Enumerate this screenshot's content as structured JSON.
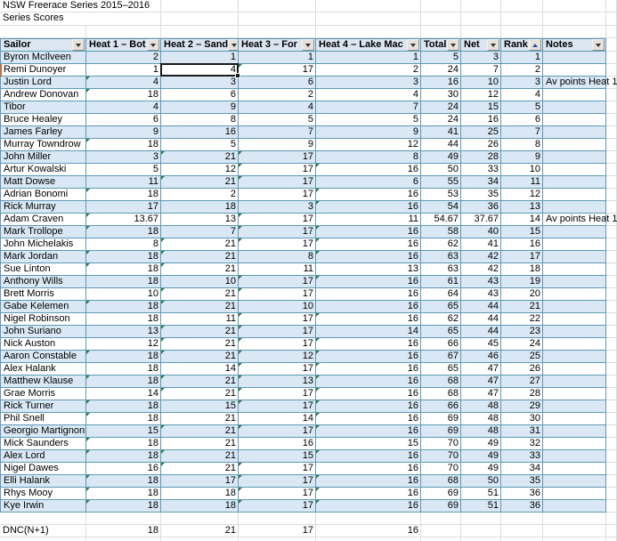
{
  "title": "NSW Freerace Series 2015–2016",
  "subtitle": "Series Scores",
  "colors": {
    "band": "#d9e8f4",
    "grid_table": "#5e9ab7",
    "grid_plain": "#dcdcdc",
    "marker_green": "#2e7d46",
    "selection_border": "#1a1a1a",
    "sort_arrow_blue": "#2a52a0",
    "row_indicator_orange": "#c0713c",
    "header_fill": "#dbe6f1"
  },
  "selection": {
    "row_index": 1,
    "column_key": "h2",
    "value": "4"
  },
  "table": {
    "columns": [
      {
        "key": "name",
        "label": "Sailor",
        "numeric": false,
        "filter_icon": "dropdown"
      },
      {
        "key": "h1",
        "label": "Heat 1 – Bot",
        "numeric": true,
        "filter_icon": "dropdown"
      },
      {
        "key": "h2",
        "label": "Heat 2 – Sand",
        "numeric": true,
        "filter_icon": "dropdown"
      },
      {
        "key": "h3",
        "label": "Heat 3 – For",
        "numeric": true,
        "filter_icon": "dropdown"
      },
      {
        "key": "h4",
        "label": "Heat 4 – Lake Mac",
        "numeric": true,
        "filter_icon": "dropdown"
      },
      {
        "key": "total",
        "label": "Total",
        "numeric": true,
        "filter_icon": "dropdown"
      },
      {
        "key": "net",
        "label": "Net",
        "numeric": true,
        "filter_icon": "dropdown"
      },
      {
        "key": "rank",
        "label": "Rank",
        "numeric": true,
        "filter_icon": "sorted-up"
      },
      {
        "key": "notes",
        "label": "Notes",
        "numeric": false,
        "filter_icon": "dropdown"
      }
    ],
    "rows": [
      {
        "name": "Byron McIlveen",
        "h1": "2",
        "h2": "1",
        "h3": "1",
        "h4": "1",
        "total": "5",
        "net": "3",
        "rank": "1",
        "notes": "",
        "marks": []
      },
      {
        "name": "Remi Dunoyer",
        "h1": "1",
        "h2": "4",
        "h3": "17",
        "h4": "2",
        "total": "24",
        "net": "7",
        "rank": "2",
        "notes": "",
        "marks": [
          "h3"
        ]
      },
      {
        "name": "Justin Lord",
        "h1": "4",
        "h2": "3",
        "h3": "6",
        "h4": "3",
        "total": "16",
        "net": "10",
        "rank": "3",
        "notes": "Av points Heat 1",
        "marks": [
          "h1"
        ]
      },
      {
        "name": "Andrew Donovan",
        "h1": "18",
        "h2": "6",
        "h3": "2",
        "h4": "4",
        "total": "30",
        "net": "12",
        "rank": "4",
        "notes": "",
        "marks": [
          "h1"
        ]
      },
      {
        "name": "Tibor",
        "h1": "4",
        "h2": "9",
        "h3": "4",
        "h4": "7",
        "total": "24",
        "net": "15",
        "rank": "5",
        "notes": "",
        "marks": []
      },
      {
        "name": "Bruce Healey",
        "h1": "6",
        "h2": "8",
        "h3": "5",
        "h4": "5",
        "total": "24",
        "net": "16",
        "rank": "6",
        "notes": "",
        "marks": []
      },
      {
        "name": "James Farley",
        "h1": "9",
        "h2": "16",
        "h3": "7",
        "h4": "9",
        "total": "41",
        "net": "25",
        "rank": "7",
        "notes": "",
        "marks": []
      },
      {
        "name": "Murray Towndrow",
        "h1": "18",
        "h2": "5",
        "h3": "9",
        "h4": "12",
        "total": "44",
        "net": "26",
        "rank": "8",
        "notes": "",
        "marks": [
          "h1"
        ]
      },
      {
        "name": "John Miller",
        "h1": "3",
        "h2": "21",
        "h3": "17",
        "h4": "8",
        "total": "49",
        "net": "28",
        "rank": "9",
        "notes": "",
        "marks": [
          "h2",
          "h3"
        ]
      },
      {
        "name": "Artur Kowalski",
        "h1": "5",
        "h2": "12",
        "h3": "17",
        "h4": "16",
        "total": "50",
        "net": "33",
        "rank": "10",
        "notes": "",
        "marks": [
          "h3",
          "h4"
        ]
      },
      {
        "name": "Matt Dowse",
        "h1": "11",
        "h2": "21",
        "h3": "17",
        "h4": "6",
        "total": "55",
        "net": "34",
        "rank": "11",
        "notes": "",
        "marks": [
          "h2",
          "h3"
        ]
      },
      {
        "name": "Adrian Bonomi",
        "h1": "18",
        "h2": "2",
        "h3": "17",
        "h4": "16",
        "total": "53",
        "net": "35",
        "rank": "12",
        "notes": "",
        "marks": [
          "h1",
          "h4"
        ]
      },
      {
        "name": "Rick Murray",
        "h1": "17",
        "h2": "18",
        "h3": "3",
        "h4": "16",
        "total": "54",
        "net": "36",
        "rank": "13",
        "notes": "",
        "marks": [
          "h4"
        ]
      },
      {
        "name": "Adam Craven",
        "h1": "13.67",
        "h2": "13",
        "h3": "17",
        "h4": "11",
        "total": "54.67",
        "net": "37.67",
        "rank": "14",
        "notes": "Av points Heat 1",
        "marks": [
          "h1",
          "h3"
        ]
      },
      {
        "name": "Mark Trollope",
        "h1": "18",
        "h2": "7",
        "h3": "17",
        "h4": "16",
        "total": "58",
        "net": "40",
        "rank": "15",
        "notes": "",
        "marks": [
          "h1",
          "h3",
          "h4"
        ]
      },
      {
        "name": "John Michelakis",
        "h1": "8",
        "h2": "21",
        "h3": "17",
        "h4": "16",
        "total": "62",
        "net": "41",
        "rank": "16",
        "notes": "",
        "marks": [
          "h2",
          "h3",
          "h4"
        ]
      },
      {
        "name": "Mark Jordan",
        "h1": "18",
        "h2": "21",
        "h3": "8",
        "h4": "16",
        "total": "63",
        "net": "42",
        "rank": "17",
        "notes": "",
        "marks": [
          "h1",
          "h2",
          "h4"
        ]
      },
      {
        "name": "Sue Linton",
        "h1": "18",
        "h2": "21",
        "h3": "11",
        "h4": "13",
        "total": "63",
        "net": "42",
        "rank": "18",
        "notes": "",
        "marks": [
          "h1",
          "h2"
        ]
      },
      {
        "name": "Anthony Wills",
        "h1": "18",
        "h2": "10",
        "h3": "17",
        "h4": "16",
        "total": "61",
        "net": "43",
        "rank": "19",
        "notes": "",
        "marks": [
          "h3",
          "h4"
        ]
      },
      {
        "name": "Brett Morris",
        "h1": "10",
        "h2": "21",
        "h3": "17",
        "h4": "16",
        "total": "64",
        "net": "43",
        "rank": "20",
        "notes": "",
        "marks": [
          "h2",
          "h3"
        ]
      },
      {
        "name": "Gabe Kelemen",
        "h1": "18",
        "h2": "21",
        "h3": "10",
        "h4": "16",
        "total": "65",
        "net": "44",
        "rank": "21",
        "notes": "",
        "marks": [
          "h1",
          "h2"
        ]
      },
      {
        "name": "Nigel Robinson",
        "h1": "18",
        "h2": "11",
        "h3": "17",
        "h4": "16",
        "total": "62",
        "net": "44",
        "rank": "22",
        "notes": "",
        "marks": [
          "h3",
          "h4"
        ]
      },
      {
        "name": "John Suriano",
        "h1": "13",
        "h2": "21",
        "h3": "17",
        "h4": "14",
        "total": "65",
        "net": "44",
        "rank": "23",
        "notes": "",
        "marks": [
          "h2",
          "h3"
        ]
      },
      {
        "name": "Nick Auston",
        "h1": "12",
        "h2": "21",
        "h3": "17",
        "h4": "16",
        "total": "66",
        "net": "45",
        "rank": "24",
        "notes": "",
        "marks": [
          "h2",
          "h3",
          "h4"
        ]
      },
      {
        "name": "Aaron Constable",
        "h1": "18",
        "h2": "21",
        "h3": "12",
        "h4": "16",
        "total": "67",
        "net": "46",
        "rank": "25",
        "notes": "",
        "marks": [
          "h1",
          "h2",
          "h3",
          "h4"
        ]
      },
      {
        "name": "Alex Halank",
        "h1": "18",
        "h2": "14",
        "h3": "17",
        "h4": "16",
        "total": "65",
        "net": "47",
        "rank": "26",
        "notes": "",
        "marks": [
          "h3",
          "h4"
        ]
      },
      {
        "name": "Matthew Klause",
        "h1": "18",
        "h2": "21",
        "h3": "13",
        "h4": "16",
        "total": "68",
        "net": "47",
        "rank": "27",
        "notes": "",
        "marks": [
          "h1",
          "h2",
          "h3",
          "h4"
        ]
      },
      {
        "name": "Grae Morris",
        "h1": "14",
        "h2": "21",
        "h3": "17",
        "h4": "16",
        "total": "68",
        "net": "47",
        "rank": "28",
        "notes": "",
        "marks": [
          "h2",
          "h3",
          "h4"
        ]
      },
      {
        "name": "Rick Turner",
        "h1": "18",
        "h2": "15",
        "h3": "17",
        "h4": "16",
        "total": "66",
        "net": "48",
        "rank": "29",
        "notes": "",
        "marks": [
          "h1",
          "h3",
          "h4"
        ]
      },
      {
        "name": "Phil Snell",
        "h1": "18",
        "h2": "21",
        "h3": "14",
        "h4": "16",
        "total": "69",
        "net": "48",
        "rank": "30",
        "notes": "",
        "marks": [
          "h1",
          "h4"
        ]
      },
      {
        "name": "Georgio Martignoni",
        "h1": "15",
        "h2": "21",
        "h3": "17",
        "h4": "16",
        "total": "69",
        "net": "48",
        "rank": "31",
        "notes": "",
        "marks": [
          "h2",
          "h3",
          "h4"
        ]
      },
      {
        "name": "Mick Saunders",
        "h1": "18",
        "h2": "21",
        "h3": "16",
        "h4": "15",
        "total": "70",
        "net": "49",
        "rank": "32",
        "notes": "",
        "marks": [
          "h1"
        ]
      },
      {
        "name": "Alex Lord",
        "h1": "18",
        "h2": "21",
        "h3": "15",
        "h4": "16",
        "total": "70",
        "net": "49",
        "rank": "33",
        "notes": "",
        "marks": [
          "h1",
          "h2",
          "h4"
        ]
      },
      {
        "name": "Nigel Dawes",
        "h1": "16",
        "h2": "21",
        "h3": "17",
        "h4": "16",
        "total": "70",
        "net": "49",
        "rank": "34",
        "notes": "",
        "marks": [
          "h2",
          "h3"
        ]
      },
      {
        "name": "Elli Halank",
        "h1": "18",
        "h2": "17",
        "h3": "17",
        "h4": "16",
        "total": "68",
        "net": "50",
        "rank": "35",
        "notes": "",
        "marks": [
          "h1",
          "h3",
          "h4"
        ]
      },
      {
        "name": "Rhys Mooy",
        "h1": "18",
        "h2": "18",
        "h3": "17",
        "h4": "16",
        "total": "69",
        "net": "51",
        "rank": "36",
        "notes": "",
        "marks": [
          "h1",
          "h3",
          "h4"
        ]
      },
      {
        "name": "Kye Irwin",
        "h1": "18",
        "h2": "18",
        "h3": "17",
        "h4": "16",
        "total": "69",
        "net": "51",
        "rank": "36",
        "notes": "",
        "marks": [
          "h1",
          "h3",
          "h4"
        ]
      }
    ],
    "footer": {
      "name": "DNC(N+1)",
      "h1": "18",
      "h2": "21",
      "h3": "17",
      "h4": "16",
      "total": "",
      "net": "",
      "rank": "",
      "notes": ""
    }
  }
}
